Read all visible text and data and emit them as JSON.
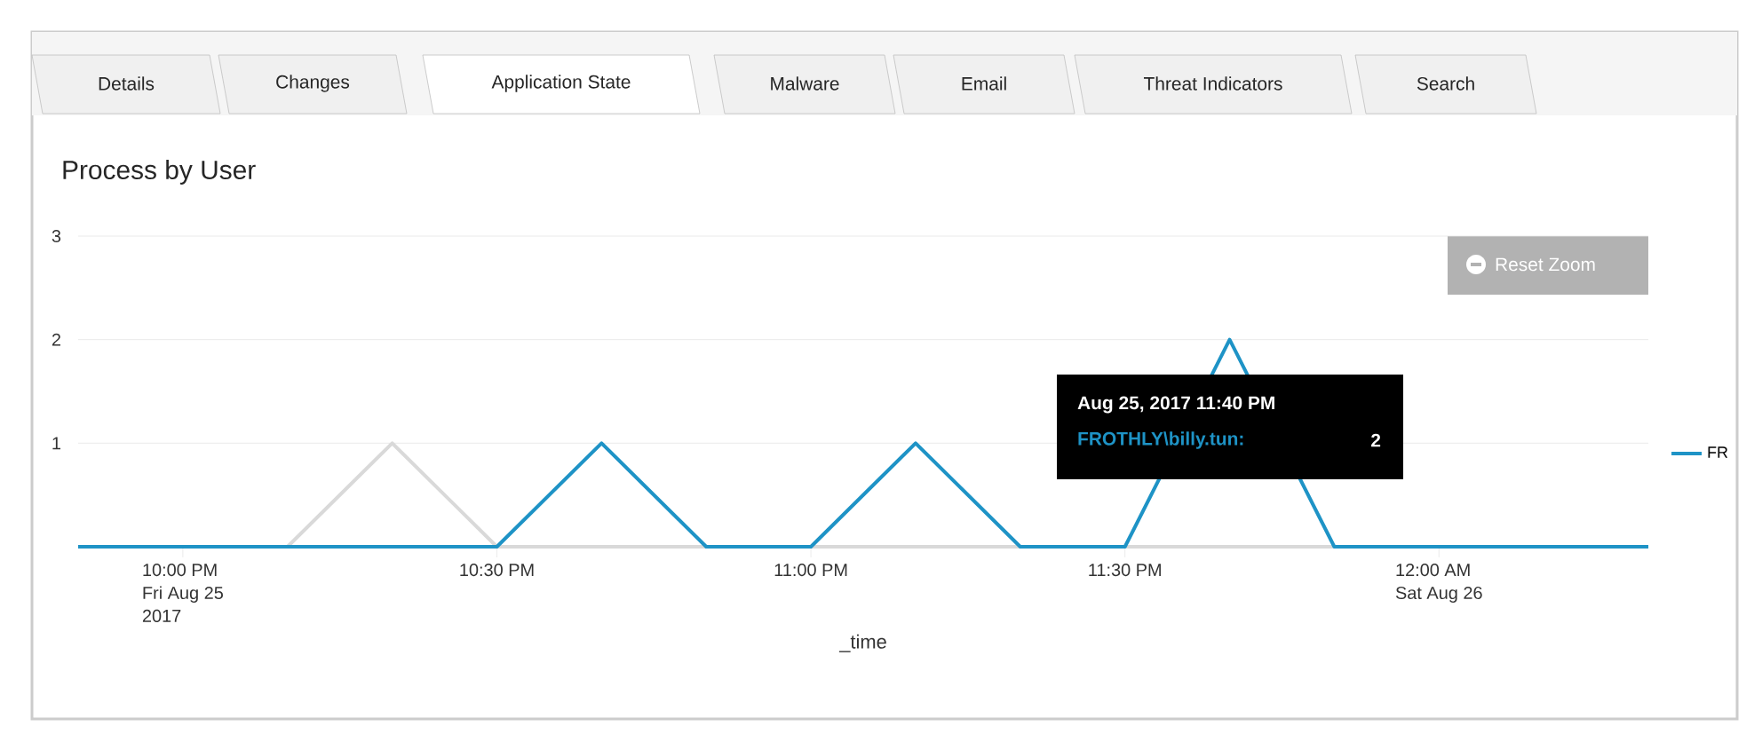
{
  "chart_data": {
    "type": "line",
    "title": "Process by User",
    "xlabel": "_time",
    "x": [
      "2017-08-25T21:50",
      "2017-08-25T22:00",
      "2017-08-25T22:10",
      "2017-08-25T22:20",
      "2017-08-25T22:30",
      "2017-08-25T22:40",
      "2017-08-25T22:50",
      "2017-08-25T23:00",
      "2017-08-25T23:10",
      "2017-08-25T23:20",
      "2017-08-25T23:30",
      "2017-08-25T23:40",
      "2017-08-25T23:50",
      "2017-08-26T00:00",
      "2017-08-26T00:10",
      "2017-08-26T00:20"
    ],
    "series": [
      {
        "color": "#d9d9d9",
        "values": [
          0,
          0,
          0,
          1,
          0,
          0,
          0,
          0,
          0,
          0,
          0,
          0,
          0,
          0,
          0,
          0
        ]
      },
      {
        "name": "FR",
        "color": "#1e93c6",
        "values": [
          0,
          0,
          0,
          0,
          0,
          1,
          0,
          0,
          1,
          0,
          0,
          2,
          0,
          0,
          0,
          0
        ]
      }
    ],
    "xlim": [
      "2017-08-25T21:50",
      "2017-08-26T00:20"
    ],
    "xticks": [
      {
        "value": "2017-08-25T22:00",
        "label": "10:00 PM\nFri Aug 25\n2017"
      },
      {
        "value": "2017-08-25T22:30",
        "label": "10:30 PM"
      },
      {
        "value": "2017-08-25T23:00",
        "label": "11:00 PM"
      },
      {
        "value": "2017-08-25T23:30",
        "label": "11:30 PM"
      },
      {
        "value": "2017-08-26T00:00",
        "label": "12:00 AM\nSat Aug 26"
      }
    ],
    "ylim": [
      0,
      3
    ],
    "yticks": [
      1,
      2,
      3
    ],
    "grid": "y",
    "legend": "right",
    "marker": "none",
    "line_style": "solid",
    "annotations": [
      "Details",
      "Changes",
      "Application State",
      "Malware",
      "Email",
      "Threat Indicators",
      "Search",
      "Reset Zoom",
      "Aug 25, 2017 11:40 PM",
      "FROTHLY\\billy.tun:",
      "2"
    ]
  }
}
